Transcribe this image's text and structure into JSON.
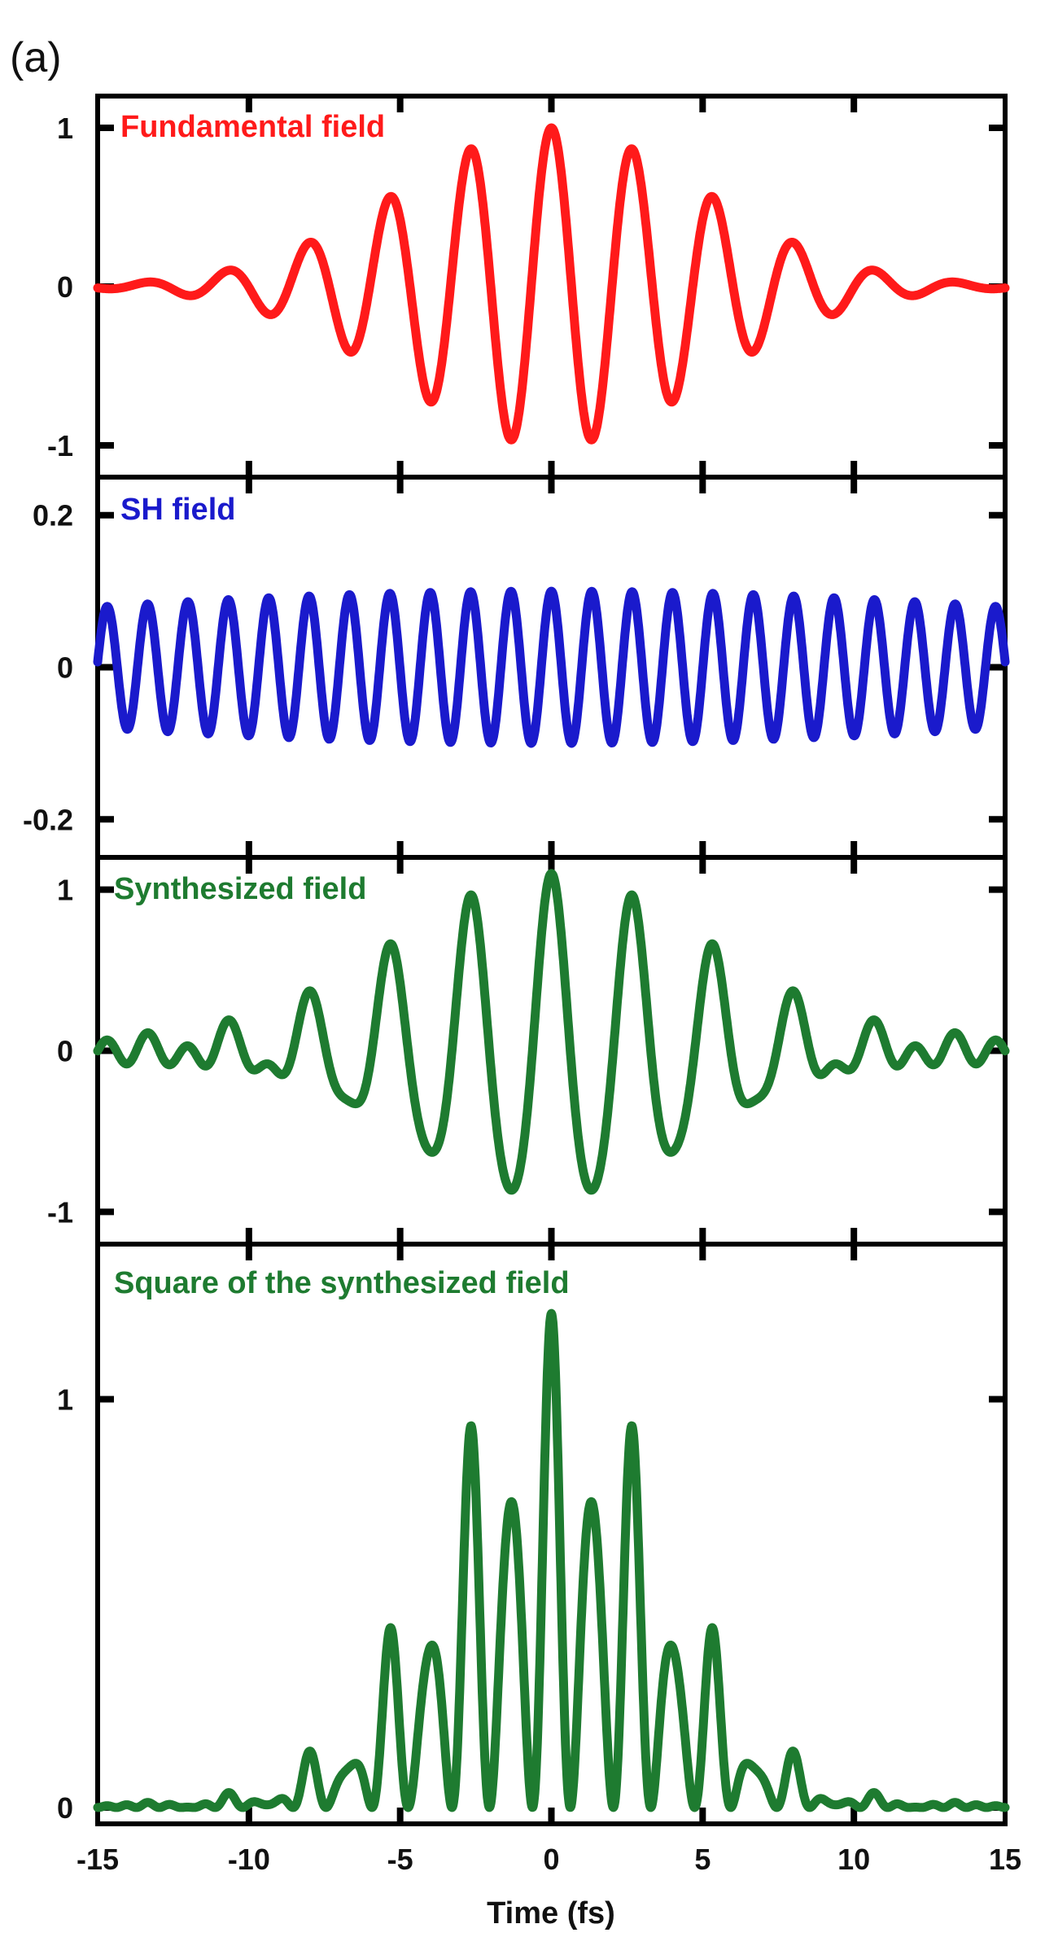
{
  "figure_label": "(a)",
  "xlabel": "Time (fs)",
  "xlim": [
    -15,
    15
  ],
  "xticks": [
    -15,
    -10,
    -5,
    0,
    5,
    10,
    15
  ],
  "chart_data": [
    {
      "type": "line",
      "title": "Fundamental field",
      "color": "#ff1a1a",
      "xlabel": "Time (fs)",
      "ylabel": "",
      "xlim": [
        -15,
        15
      ],
      "ylim": [
        -1.2,
        1.2
      ],
      "yticks": [
        -1,
        0,
        1
      ],
      "model": {
        "kind": "gaussian_cosine",
        "amplitude": 1.0,
        "period_fs": 2.67,
        "sigma_fs": 5.0
      },
      "series": [
        {
          "x": [
            -15,
            -13.33,
            -12,
            -10.67,
            -9.33,
            -8,
            -6.67,
            -5.33,
            -4,
            -2.67,
            -1.33,
            0,
            1.33,
            2.67,
            4,
            5.33,
            6.67,
            8,
            9.33,
            10.67,
            12,
            13.33,
            15
          ],
          "y": [
            0,
            0.03,
            -0.05,
            0.1,
            -0.17,
            0.28,
            -0.42,
            0.57,
            -0.73,
            0.87,
            -0.97,
            1.0,
            -0.97,
            0.87,
            -0.73,
            0.57,
            -0.42,
            0.28,
            -0.17,
            0.1,
            -0.05,
            0.03,
            0
          ]
        }
      ]
    },
    {
      "type": "line",
      "title": "SH field",
      "color": "#1a1acc",
      "xlabel": "Time (fs)",
      "ylabel": "",
      "xlim": [
        -15,
        15
      ],
      "ylim": [
        -0.25,
        0.25
      ],
      "yticks": [
        -0.2,
        0,
        0.2
      ],
      "model": {
        "kind": "gaussian_cosine",
        "amplitude": 0.1,
        "period_fs": 1.335,
        "sigma_fs": 22.0
      },
      "series": [
        {
          "x": [
            -15,
            -10,
            -5,
            0,
            5,
            10,
            15
          ],
          "y": [
            0.08,
            0.09,
            0.098,
            0.1,
            0.098,
            0.09,
            0.08
          ]
        }
      ]
    },
    {
      "type": "line",
      "title": "Synthesized field",
      "color": "#1e7b30",
      "xlabel": "Time (fs)",
      "ylabel": "",
      "xlim": [
        -15,
        15
      ],
      "ylim": [
        -1.2,
        1.2
      ],
      "yticks": [
        -1,
        0,
        1
      ],
      "model": {
        "kind": "sum_of_fields",
        "components": [
          0,
          1
        ]
      },
      "series": [
        {
          "x": [
            -13.33,
            -10.67,
            -8,
            -5.33,
            -2.67,
            0,
            2.67,
            5.33,
            8,
            10.67,
            13.33
          ],
          "y": [
            0.1,
            0.18,
            0.37,
            0.65,
            0.97,
            1.1,
            0.97,
            0.65,
            0.37,
            0.18,
            0.1
          ]
        }
      ]
    },
    {
      "type": "line",
      "title": "Square of the synthesized field",
      "color": "#1e7b30",
      "xlabel": "Time (fs)",
      "ylabel": "",
      "xlim": [
        -15,
        15
      ],
      "ylim": [
        -0.04,
        1.38
      ],
      "yticks": [
        0,
        1
      ],
      "model": {
        "kind": "square_of_field",
        "component": 2
      },
      "series": [
        {
          "x": [
            -8,
            -5.33,
            -4,
            -2.67,
            -1.33,
            0,
            1.33,
            2.67,
            4,
            5.33,
            8
          ],
          "y": [
            0.13,
            0.42,
            0.39,
            0.92,
            0.74,
            1.21,
            0.74,
            0.92,
            0.39,
            0.42,
            0.13
          ]
        }
      ]
    }
  ]
}
